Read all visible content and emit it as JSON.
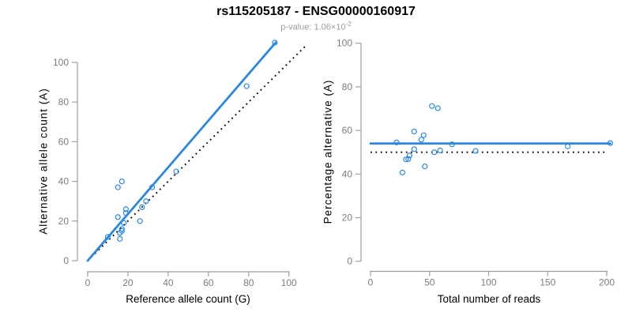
{
  "header": {
    "title": "rs115205187 - ENSG00000160917",
    "pvalue_text": "p-value: 1.06×10",
    "pvalue_exponent": "-2"
  },
  "colors": {
    "accent_blue": "#2b87e2",
    "identity_line": "#000000",
    "axis": "#9e9e9e",
    "tick_label": "#7d7d7d",
    "subtitle_gray": "#9a9a9a"
  },
  "chart_data": [
    {
      "type": "scatter",
      "panel": "left",
      "xlabel": "Reference allele count (G)",
      "ylabel": "Alternative allele count (A)",
      "xticks": [
        0,
        20,
        40,
        60,
        80,
        100
      ],
      "yticks": [
        0,
        20,
        40,
        60,
        80,
        100
      ],
      "xlim": [
        0,
        108
      ],
      "ylim": [
        0,
        110
      ],
      "grid": false,
      "points": {
        "x": [
          93,
          79,
          44,
          32,
          17,
          15,
          29,
          27,
          19,
          19,
          15,
          26,
          18,
          17,
          17,
          16,
          16,
          10
        ],
        "y": [
          110,
          88,
          45,
          37,
          40,
          37,
          30,
          27,
          26,
          24,
          22,
          20,
          19,
          16,
          15,
          14,
          11,
          12
        ]
      },
      "fit_line": {
        "x": [
          0,
          93.4
        ],
        "y": [
          0,
          110
        ],
        "style": "solid"
      },
      "identity_line": {
        "x": [
          0,
          108
        ],
        "y": [
          0,
          108
        ],
        "style": "dotted"
      }
    },
    {
      "type": "scatter",
      "panel": "right",
      "xlabel": "Total number of reads",
      "ylabel": "Percentage alternative (A)",
      "xticks": [
        0,
        50,
        100,
        150,
        200
      ],
      "yticks": [
        0,
        20,
        40,
        60,
        80,
        100
      ],
      "xlim": [
        0,
        203
      ],
      "ylim": [
        0,
        100
      ],
      "grid": false,
      "points": {
        "x": [
          203,
          167,
          89,
          69,
          57,
          52,
          59,
          54,
          45,
          43,
          37,
          46,
          37,
          33,
          32,
          30,
          27,
          22
        ],
        "y": [
          54.2,
          52.7,
          50.6,
          53.6,
          70.2,
          71.2,
          50.8,
          50.0,
          57.8,
          55.8,
          59.5,
          43.5,
          51.4,
          48.5,
          46.9,
          46.7,
          40.7,
          54.5
        ]
      },
      "fit_line": {
        "x": [
          0,
          203
        ],
        "y": [
          54,
          54
        ],
        "style": "solid"
      },
      "identity_line": {
        "x": [
          0,
          201
        ],
        "y": [
          50,
          50
        ],
        "style": "dotted"
      }
    }
  ]
}
